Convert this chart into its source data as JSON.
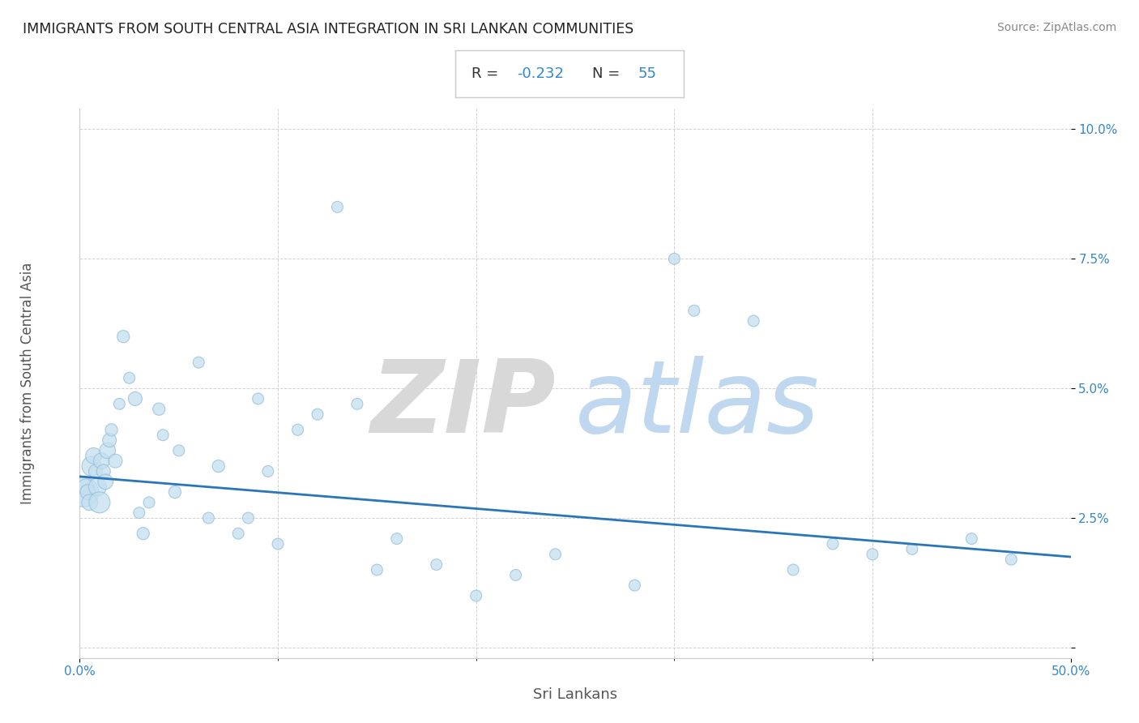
{
  "title": "IMMIGRANTS FROM SOUTH CENTRAL ASIA INTEGRATION IN SRI LANKAN COMMUNITIES",
  "source": "Source: ZipAtlas.com",
  "xlabel": "Sri Lankans",
  "ylabel": "Immigrants from South Central Asia",
  "R": -0.232,
  "N": 55,
  "xlim": [
    0,
    0.5
  ],
  "ylim": [
    -0.002,
    0.104
  ],
  "xtick_positions": [
    0.0,
    0.5
  ],
  "xtick_labels": [
    "0.0%",
    "50.0%"
  ],
  "xtick_minor_positions": [
    0.1,
    0.2,
    0.3,
    0.4
  ],
  "ytick_positions": [
    0.0,
    0.025,
    0.05,
    0.075,
    0.1
  ],
  "ytick_labels": [
    "",
    "2.5%",
    "5.0%",
    "7.5%",
    "10.0%"
  ],
  "scatter_x": [
    0.002,
    0.003,
    0.004,
    0.005,
    0.006,
    0.007,
    0.008,
    0.009,
    0.01,
    0.011,
    0.012,
    0.013,
    0.014,
    0.015,
    0.016,
    0.018,
    0.02,
    0.022,
    0.025,
    0.028,
    0.03,
    0.032,
    0.035,
    0.04,
    0.042,
    0.048,
    0.05,
    0.06,
    0.065,
    0.07,
    0.08,
    0.085,
    0.09,
    0.095,
    0.1,
    0.11,
    0.12,
    0.13,
    0.14,
    0.15,
    0.16,
    0.18,
    0.2,
    0.22,
    0.24,
    0.28,
    0.3,
    0.31,
    0.34,
    0.36,
    0.38,
    0.4,
    0.42,
    0.45,
    0.47
  ],
  "scatter_y": [
    0.03,
    0.031,
    0.03,
    0.028,
    0.035,
    0.037,
    0.034,
    0.031,
    0.028,
    0.036,
    0.034,
    0.032,
    0.038,
    0.04,
    0.042,
    0.036,
    0.047,
    0.06,
    0.052,
    0.048,
    0.026,
    0.022,
    0.028,
    0.046,
    0.041,
    0.03,
    0.038,
    0.055,
    0.025,
    0.035,
    0.022,
    0.025,
    0.048,
    0.034,
    0.02,
    0.042,
    0.045,
    0.085,
    0.047,
    0.015,
    0.021,
    0.016,
    0.01,
    0.014,
    0.018,
    0.012,
    0.075,
    0.065,
    0.063,
    0.015,
    0.02,
    0.018,
    0.019,
    0.021,
    0.017
  ],
  "scatter_sizes": [
    700,
    200,
    180,
    200,
    300,
    200,
    150,
    250,
    350,
    200,
    150,
    180,
    200,
    150,
    120,
    150,
    100,
    120,
    100,
    150,
    100,
    120,
    100,
    120,
    100,
    120,
    100,
    100,
    100,
    120,
    100,
    100,
    100,
    100,
    100,
    100,
    100,
    100,
    100,
    100,
    100,
    100,
    100,
    100,
    100,
    100,
    100,
    100,
    100,
    100,
    100,
    100,
    100,
    100,
    100
  ],
  "scatter_color": "#c5dff0",
  "scatter_edge_color": "#90bcd8",
  "line_color": "#2a76b8",
  "regression_y_start": 0.033,
  "regression_y_end": 0.0175,
  "watermark_zip": "ZIP",
  "watermark_atlas": "atlas",
  "watermark_zip_color": "#d8d8d8",
  "watermark_atlas_color": "#c0d8ef",
  "title_color": "#222222",
  "label_color": "#555555",
  "tick_color": "#3388cc",
  "source_color": "#888888",
  "box_facecolor": "#ffffff",
  "box_edgecolor": "#cccccc",
  "grid_color": "#cccccc",
  "background_color": "#ffffff"
}
